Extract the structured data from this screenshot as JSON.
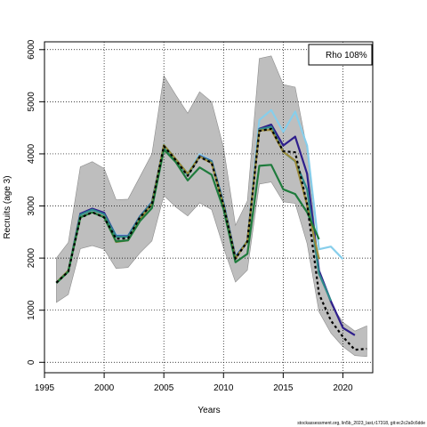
{
  "chart_data": {
    "type": "line",
    "xlabel": "Years",
    "ylabel": "Recruits (age 3)",
    "xlim": [
      1995,
      2022.5
    ],
    "ylim": [
      -200,
      6150
    ],
    "x_ticks": [
      1995,
      2000,
      2005,
      2010,
      2015,
      2020
    ],
    "y_ticks": [
      0,
      1000,
      2000,
      3000,
      4000,
      5000,
      6000
    ],
    "grid": "dotted",
    "legend_position": "top-right",
    "legend_text": "Rho 108%",
    "footer": "stockassessment.org, lin5b_2023_last,r17318, git:ec2c2a0c6dde",
    "confidence_band": {
      "x": [
        1996,
        1997,
        1998,
        1999,
        2000,
        2001,
        2002,
        2003,
        2004,
        2005,
        2006,
        2007,
        2008,
        2009,
        2010,
        2011,
        2012,
        2013,
        2014,
        2015,
        2016,
        2017,
        2018,
        2019,
        2020,
        2021,
        2022
      ],
      "upper": [
        2000,
        2300,
        3750,
        3850,
        3720,
        3120,
        3130,
        3560,
        4000,
        5500,
        5130,
        4780,
        5190,
        5000,
        4120,
        2630,
        3100,
        5830,
        5880,
        5330,
        5280,
        4090,
        1760,
        1110,
        770,
        600,
        700
      ],
      "lower": [
        1150,
        1300,
        2180,
        2240,
        2170,
        1800,
        1820,
        2100,
        2330,
        3200,
        2980,
        2810,
        3060,
        2930,
        2200,
        1540,
        1770,
        3420,
        3460,
        3080,
        3050,
        2280,
        970,
        560,
        300,
        130,
        110
      ]
    },
    "series": [
      {
        "color": "#000000",
        "dashed": true,
        "x": [
          1996,
          1997,
          1998,
          1999,
          2000,
          2001,
          2002,
          2003,
          2004,
          2005,
          2006,
          2007,
          2008,
          2009,
          2010,
          2011,
          2012,
          2013,
          2014,
          2015,
          2016,
          2017,
          2018,
          2019,
          2020,
          2021,
          2022
        ],
        "values": [
          1530,
          1740,
          2770,
          2880,
          2780,
          2370,
          2380,
          2780,
          3030,
          4150,
          3880,
          3580,
          3940,
          3830,
          3010,
          1990,
          2320,
          4440,
          4480,
          4050,
          4030,
          3040,
          1310,
          800,
          490,
          240,
          260
        ]
      },
      {
        "color": "#87CEEB",
        "dashed": false,
        "x": [
          1996,
          1997,
          1998,
          1999,
          2000,
          2001,
          2002,
          2003,
          2004,
          2005,
          2006,
          2007,
          2008,
          2009,
          2010,
          2011,
          2012,
          2013,
          2014,
          2015,
          2016,
          2017,
          2018,
          2019,
          2020
        ],
        "values": [
          1530,
          1760,
          2850,
          2920,
          2860,
          2440,
          2430,
          2800,
          3080,
          4180,
          3900,
          3630,
          3990,
          3870,
          3070,
          2030,
          2340,
          4650,
          4840,
          4420,
          4810,
          4160,
          2170,
          2220,
          1980
        ]
      },
      {
        "color": "#2E1E8C",
        "dashed": false,
        "x": [
          1996,
          1997,
          1998,
          1999,
          2000,
          2001,
          2002,
          2003,
          2004,
          2005,
          2006,
          2007,
          2008,
          2009,
          2010,
          2011,
          2012,
          2013,
          2014,
          2015,
          2016,
          2017,
          2018,
          2019,
          2020,
          2021
        ],
        "values": [
          1530,
          1750,
          2850,
          2950,
          2870,
          2420,
          2420,
          2800,
          3070,
          4150,
          3880,
          3600,
          3960,
          3860,
          3050,
          2020,
          2320,
          4480,
          4560,
          4160,
          4330,
          3620,
          1760,
          1170,
          660,
          520
        ]
      },
      {
        "color": "#2E8B8B",
        "dashed": false,
        "x": [
          1996,
          1997,
          1998,
          1999,
          2000,
          2001,
          2002,
          2003,
          2004,
          2005,
          2006,
          2007,
          2008,
          2009,
          2010,
          2011,
          2012,
          2013,
          2014,
          2015,
          2016,
          2017,
          2018,
          2019
        ],
        "values": [
          1530,
          1750,
          2830,
          2930,
          2840,
          2410,
          2410,
          2790,
          3060,
          4140,
          3880,
          3590,
          3950,
          3850,
          3040,
          2010,
          2310,
          4470,
          4520,
          4040,
          3860,
          3320,
          1700,
          1180
        ]
      },
      {
        "color": "#9C8B3A",
        "dashed": false,
        "x": [
          1996,
          1997,
          1998,
          1999,
          2000,
          2001,
          2002,
          2003,
          2004,
          2005,
          2006,
          2007,
          2008,
          2009,
          2010,
          2011,
          2012,
          2013,
          2014,
          2015,
          2016,
          2017,
          2018
        ],
        "values": [
          1530,
          1760,
          2780,
          2880,
          2790,
          2310,
          2340,
          2750,
          3040,
          4170,
          3900,
          3620,
          3950,
          3820,
          3010,
          1990,
          2330,
          4450,
          4460,
          4040,
          3870,
          3020,
          1980
        ]
      },
      {
        "color": "#1E7B3C",
        "dashed": false,
        "x": [
          1996,
          1997,
          1998,
          1999,
          2000,
          2001,
          2002,
          2003,
          2004,
          2005,
          2006,
          2007,
          2008,
          2009,
          2010,
          2011,
          2012,
          2013,
          2014,
          2015,
          2016,
          2017,
          2018
        ],
        "values": [
          1520,
          1740,
          2780,
          2880,
          2780,
          2320,
          2340,
          2710,
          2960,
          4080,
          3840,
          3490,
          3740,
          3600,
          2940,
          1920,
          2080,
          3770,
          3790,
          3320,
          3230,
          2880,
          2360
        ]
      }
    ]
  }
}
